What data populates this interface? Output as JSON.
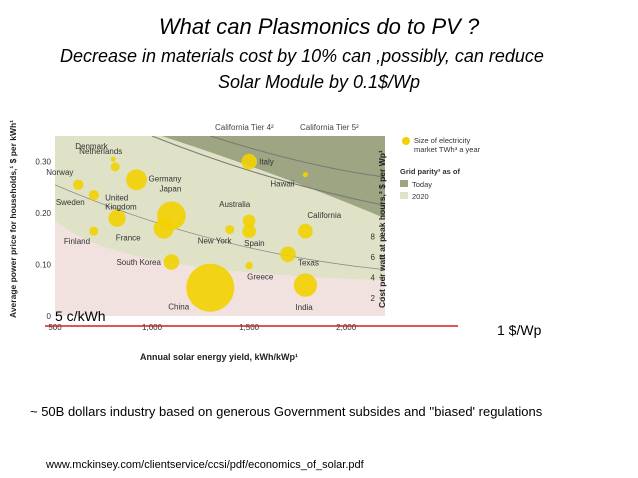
{
  "slide": {
    "title": "What can Plasmonics do to PV ?",
    "subtitle_line1": "Decrease in materials cost by 10% can ,possibly, can reduce",
    "subtitle_line2": "Solar Module by 0.1$/Wp",
    "left_marker": "5 c/kWh",
    "right_marker": "1 $/Wp",
    "footnote": "~ 50B dollars industry based on generous Government subsides and ''biased' regulations",
    "source": "www.mckinsey.com/clientservice/ccsi/pdf/economics_of_solar.pdf"
  },
  "chart_data": {
    "type": "scatter",
    "xlabel": "Annual solar energy yield, kWh/kWp¹",
    "ylabel": "Average power price for households,¹ $ per kWh¹",
    "y2label": "Cost per watt at peak hours,³ $ per Wp¹",
    "xlim": [
      500,
      2200
    ],
    "ylim": [
      0,
      0.35
    ],
    "x_ticks": [
      "500",
      "1,000",
      "1,500",
      "2,000"
    ],
    "y_ticks": [
      "0",
      "0.10",
      "0.20",
      "0.30"
    ],
    "y2_ticks": [
      "2",
      "4",
      "6",
      "8"
    ],
    "grid": false,
    "curve_labels": [
      "California Tier 4²",
      "California Tier 5²"
    ],
    "legend": {
      "placement": "right",
      "bubble_label": "Size of electricity market TWh³ a year",
      "parity_title": "Grid parity³ as of",
      "parity_items": [
        {
          "label": "Today",
          "color": "#9ea582"
        },
        {
          "label": "2020",
          "color": "#dfe2c7"
        }
      ]
    },
    "colors": {
      "bubble": "#f2d200",
      "today_zone": "#9ea582",
      "zone_2020": "#dfe2c7",
      "background": "#f1e2e0",
      "marker_line": "#d41f1f"
    },
    "points": [
      {
        "label": "Denmark",
        "x": 800,
        "y": 0.305,
        "size": 1
      },
      {
        "label": "Netherlands",
        "x": 810,
        "y": 0.29,
        "size": 3
      },
      {
        "label": "Norway",
        "x": 620,
        "y": 0.255,
        "size": 4
      },
      {
        "label": "Germany",
        "x": 920,
        "y": 0.265,
        "size": 16
      },
      {
        "label": "Sweden",
        "x": 700,
        "y": 0.235,
        "size": 4
      },
      {
        "label": "United Kingdom",
        "x": 820,
        "y": 0.19,
        "size": 11
      },
      {
        "label": "Finland",
        "x": 700,
        "y": 0.165,
        "size": 3
      },
      {
        "label": "Japan",
        "x": 1100,
        "y": 0.195,
        "size": 30
      },
      {
        "label": "France",
        "x": 1060,
        "y": 0.17,
        "size": 15
      },
      {
        "label": "Italy",
        "x": 1500,
        "y": 0.3,
        "size": 9
      },
      {
        "label": "Hawaii",
        "x": 1790,
        "y": 0.275,
        "size": 1
      },
      {
        "label": "Australia",
        "x": 1500,
        "y": 0.185,
        "size": 6
      },
      {
        "label": "New York",
        "x": 1400,
        "y": 0.168,
        "size": 3
      },
      {
        "label": "Spain",
        "x": 1500,
        "y": 0.165,
        "size": 7
      },
      {
        "label": "California",
        "x": 1790,
        "y": 0.165,
        "size": 8
      },
      {
        "label": "Texas",
        "x": 1700,
        "y": 0.12,
        "size": 9
      },
      {
        "label": "South Korea",
        "x": 1100,
        "y": 0.105,
        "size": 9
      },
      {
        "label": "Greece",
        "x": 1500,
        "y": 0.098,
        "size": 2
      },
      {
        "label": "China",
        "x": 1300,
        "y": 0.055,
        "size": 85
      },
      {
        "label": "India",
        "x": 1790,
        "y": 0.06,
        "size": 20
      }
    ]
  }
}
